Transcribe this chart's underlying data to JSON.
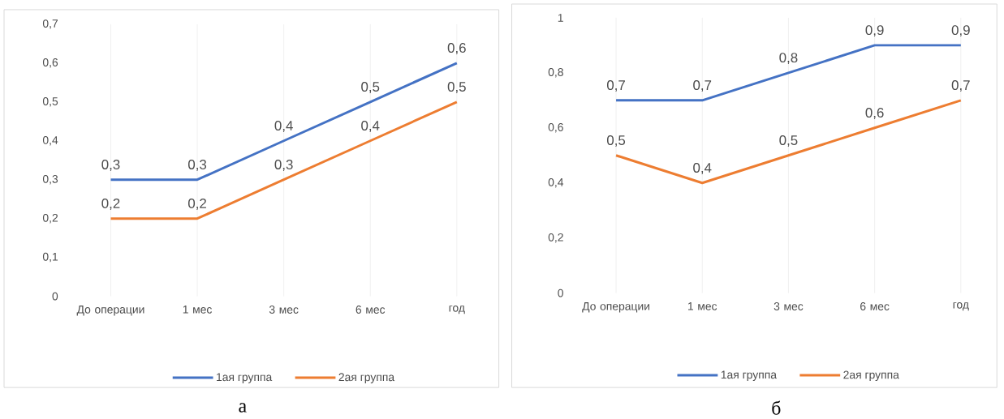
{
  "chart_data": [
    {
      "type": "line",
      "categories": [
        "До операции",
        "1 мес",
        "3 мес",
        "6 мес",
        "год"
      ],
      "ylim": [
        0,
        0.7
      ],
      "yticks": [
        0,
        {
          "value": 0.1,
          "label": "0,1"
        },
        {
          "value": 0.2,
          "label": "0,2"
        },
        {
          "value": 0.3,
          "label": "0,3"
        },
        {
          "value": 0.4,
          "label": "0,4"
        },
        {
          "value": 0.5,
          "label": "0,5"
        },
        {
          "value": 0.6,
          "label": "0,6"
        },
        {
          "value": 0.7,
          "label": "0,7"
        }
      ],
      "grid": "x",
      "legend": "bottom",
      "series": [
        {
          "name": "1ая группа",
          "color": "#4472c4",
          "values": [
            0.3,
            0.3,
            0.4,
            0.5,
            0.6
          ],
          "value_labels": [
            "0,3",
            "0,3",
            "0,4",
            "0,5",
            "0,6"
          ]
        },
        {
          "name": "2ая группа",
          "color": "#ed7d31",
          "values": [
            0.2,
            0.2,
            0.3,
            0.4,
            0.5
          ],
          "value_labels": [
            "0,2",
            "0,2",
            "0,3",
            "0,4",
            "0,5"
          ]
        }
      ],
      "annotations": [
        "а"
      ]
    },
    {
      "type": "line",
      "categories": [
        "До операции",
        "1 мес",
        "3 мес",
        "6 мес",
        "год"
      ],
      "ylim": [
        0,
        1
      ],
      "yticks": [
        0,
        {
          "value": 0.2,
          "label": "0,2"
        },
        {
          "value": 0.4,
          "label": "0,4"
        },
        {
          "value": 0.6,
          "label": "0,6"
        },
        {
          "value": 0.8,
          "label": "0,8"
        },
        1
      ],
      "grid": "x",
      "legend": "bottom",
      "series": [
        {
          "name": "1ая группа",
          "color": "#4472c4",
          "values": [
            0.7,
            0.7,
            0.8,
            0.9,
            0.9
          ],
          "value_labels": [
            "0,7",
            "0,7",
            "0,8",
            "0,9",
            "0,9"
          ]
        },
        {
          "name": "2ая группа",
          "color": "#ed7d31",
          "values": [
            0.5,
            0.4,
            0.5,
            0.6,
            0.7
          ],
          "value_labels": [
            "0,5",
            "0,4",
            "0,5",
            "0,6",
            "0,7"
          ]
        }
      ],
      "annotations": [
        "б"
      ]
    }
  ]
}
